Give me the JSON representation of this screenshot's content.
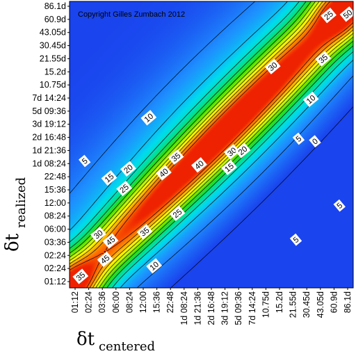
{
  "chart_data": {
    "type": "heatmap",
    "title": "",
    "annotation": "Copyright Gilles Zumbach 2012",
    "xlabel": {
      "symbol": "δt",
      "subscript": "centered"
    },
    "ylabel": {
      "symbol": "δt",
      "subscript": "realized"
    },
    "x_ticks": [
      "01:12",
      "02:24",
      "03:36",
      "06:00",
      "08:24",
      "12:00",
      "15:36",
      "22:48",
      "1d 08:24",
      "1d 21:36",
      "2d 16:48",
      "3d 19:12",
      "5d 09:36",
      "7d 14:24",
      "10.75d",
      "15.2d",
      "21.55d",
      "30.45d",
      "43.05d",
      "60.9d",
      "86.1d"
    ],
    "y_ticks": [
      "01:12",
      "02:24",
      "02:24",
      "03:36",
      "06:00",
      "08:24",
      "12:00",
      "15:36",
      "22:48",
      "1d 08:24",
      "1d 21:36",
      "2d 16:48",
      "3d 19:12",
      "5d 09:36",
      "7d 14:24",
      "10.75d",
      "15.2d",
      "21.55d",
      "30.45d",
      "43.05d",
      "60.9d",
      "86.1d"
    ],
    "contour_labels": [
      {
        "text": "50",
        "i": 20,
        "j": 20.4
      },
      {
        "text": "25",
        "i": 18.6,
        "j": 20.3
      },
      {
        "text": "35",
        "i": 18.2,
        "j": 17
      },
      {
        "text": "30",
        "i": 14.5,
        "j": 16.4
      },
      {
        "text": "10",
        "i": 17.3,
        "j": 13.9
      },
      {
        "text": "5",
        "i": 16.4,
        "j": 10.9
      },
      {
        "text": "0",
        "i": 17.6,
        "j": 10.7
      },
      {
        "text": "5",
        "i": 19.4,
        "j": 5.8
      },
      {
        "text": "5",
        "i": 16.2,
        "j": 3.2
      },
      {
        "text": "10",
        "i": 5.4,
        "j": 12.5
      },
      {
        "text": "5",
        "i": 0.7,
        "j": 9.2
      },
      {
        "text": "15",
        "i": 2.5,
        "j": 7.9
      },
      {
        "text": "20",
        "i": 3.9,
        "j": 8.6
      },
      {
        "text": "25",
        "i": 3.6,
        "j": 7.1
      },
      {
        "text": "35",
        "i": 7.4,
        "j": 9.5
      },
      {
        "text": "40",
        "i": 6.5,
        "j": 8.3
      },
      {
        "text": "40",
        "i": 9.1,
        "j": 8.9
      },
      {
        "text": "30",
        "i": 11.5,
        "j": 9.9
      },
      {
        "text": "20",
        "i": 12.3,
        "j": 10.0
      },
      {
        "text": "15",
        "i": 11.3,
        "j": 8.7
      },
      {
        "text": "25",
        "i": 7.5,
        "j": 5.2
      },
      {
        "text": "35",
        "i": 5.1,
        "j": 3.8
      },
      {
        "text": "45",
        "i": 2.6,
        "j": 3.1
      },
      {
        "text": "30",
        "i": 1.7,
        "j": 3.6
      },
      {
        "text": "45",
        "i": 2.2,
        "j": 1.7
      },
      {
        "text": "35",
        "i": 0.4,
        "j": 0.4
      },
      {
        "text": "10",
        "i": 5.8,
        "j": 1.2
      }
    ],
    "color_scale": [
      "#1a44ee",
      "#1e90ff",
      "#00ddee",
      "#00e08a",
      "#33dd00",
      "#aaf000",
      "#ffff00",
      "#ffb000",
      "#ff6a00",
      "#ee2200"
    ],
    "value_range": [
      0,
      55
    ],
    "contour_levels": [
      0,
      5,
      10,
      15,
      20,
      25,
      30,
      35,
      40,
      45,
      50
    ]
  }
}
